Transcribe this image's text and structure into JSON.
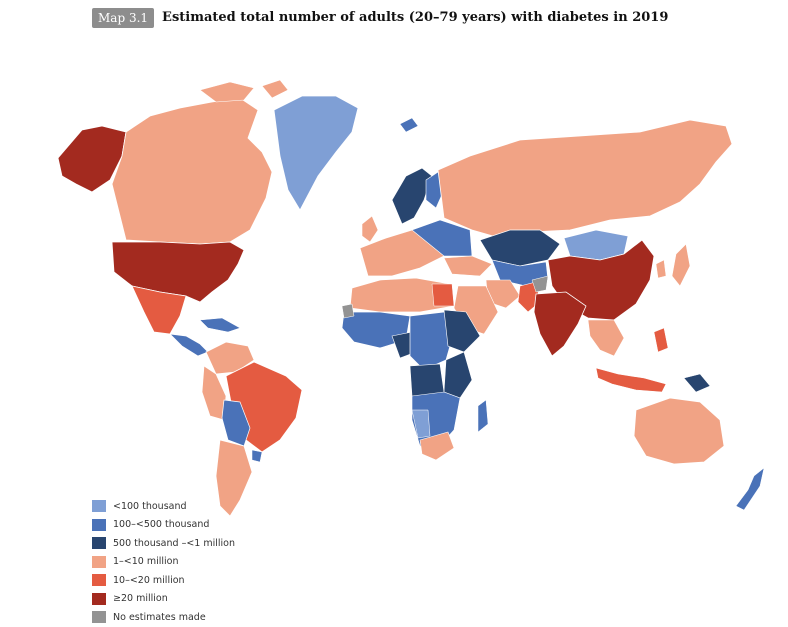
{
  "header": {
    "badge": "Map 3.1",
    "title": "Estimated total number of adults (20–79 years) with diabetes in 2019"
  },
  "colors": {
    "lt100k": "#7f9fd5",
    "100to500k": "#4a72b8",
    "500kto1m": "#28456f",
    "1to10m": "#f1a385",
    "10to20m": "#e45b41",
    "ge20m": "#a32a1f",
    "none": "#939393"
  },
  "legend": [
    {
      "label": "<100 thousand",
      "color": "#7f9fd5"
    },
    {
      "label": "100–<500 thousand",
      "color": "#4a72b8"
    },
    {
      "label": "500 thousand –<1 million",
      "color": "#28456f"
    },
    {
      "label": "1–<10 million",
      "color": "#f1a385"
    },
    {
      "label": "10–<20 million",
      "color": "#e45b41"
    },
    {
      "label": "≥20 million",
      "color": "#a32a1f"
    },
    {
      "label": "No estimates made",
      "color": "#939393"
    }
  ]
}
